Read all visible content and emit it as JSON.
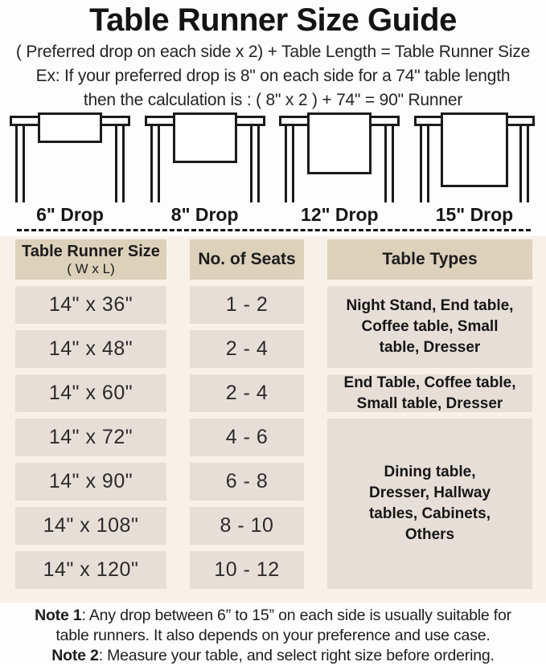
{
  "title": "Table Runner Size Guide",
  "formula": "( Preferred drop on each side x 2) + Table Length = Table Runner Size",
  "example": {
    "line1": "Ex: If your preferred drop is 8\" on each side for a 74\" table length",
    "line2": "then the calculation is : ( 8\" x 2 ) + 74\" = 90\" Runner"
  },
  "drops": [
    {
      "label": "6\" Drop"
    },
    {
      "label": "8\" Drop"
    },
    {
      "label": "12\" Drop"
    },
    {
      "label": "15\" Drop"
    }
  ],
  "size_table": {
    "header": {
      "size_line1": "Table Runner Size",
      "size_line2": "( W x L)",
      "seats": "No. of Seats",
      "types": "Table Types"
    },
    "rows": [
      {
        "size": "14\" x 36\"",
        "seats": "1 - 2"
      },
      {
        "size": "14\" x 48\"",
        "seats": "2 - 4"
      },
      {
        "size": "14\" x 60\"",
        "seats": "2 - 4"
      },
      {
        "size": "14\" x 72\"",
        "seats": "4 - 6"
      },
      {
        "size": "14\" x 90\"",
        "seats": "6 - 8"
      },
      {
        "size": "14\" x 108\"",
        "seats": "8 - 10"
      },
      {
        "size": "14\" x 120\"",
        "seats": "10 - 12"
      }
    ],
    "type_groups": [
      {
        "text": "Night Stand, End table,\nCoffee table, Small\ntable, Dresser"
      },
      {
        "text": "End Table, Coffee table,\nSmall table, Dresser"
      },
      {
        "text": "Dining table,\nDresser, Hallway\ntables, Cabinets,\nOthers"
      }
    ]
  },
  "notes": {
    "note1_label": "Note 1",
    "note1_line1": ": Any drop between 6” to 15” on each side is usually suitable for",
    "note1_line2": "table runners. It also depends on your preference and use case.",
    "note2_label": "Note 2",
    "note2_text": ": Measure your table, and select right size before ordering."
  },
  "colors": {
    "header_cell_bg": "#ddd1bb",
    "data_cell_bg": "#e6dfd8",
    "section_bg": "#f7f1e9",
    "line_color": "#1b1b1b",
    "text_color": "#1d1d1d"
  }
}
